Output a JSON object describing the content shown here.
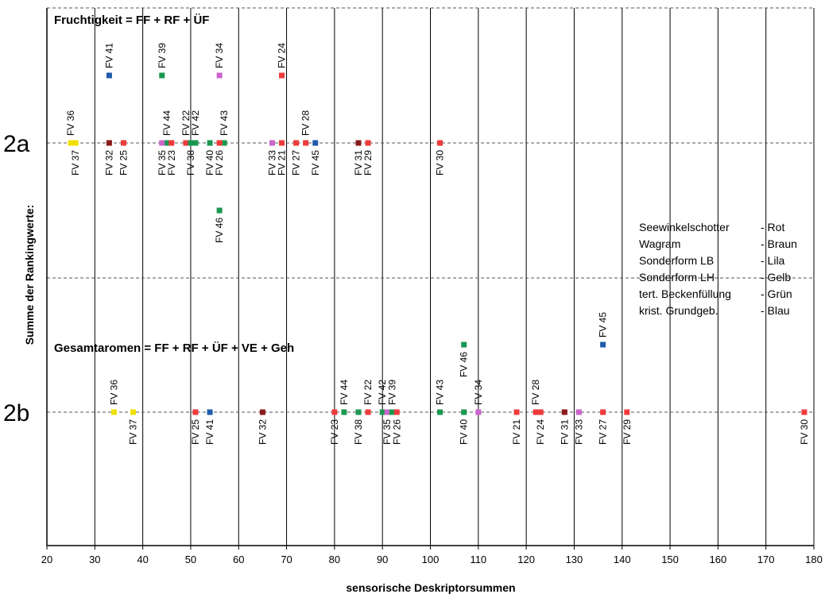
{
  "chart_data": {
    "type": "scatter",
    "xlabel": "sensorische Deskriptorsummen",
    "ylabel": "Summe der Rankingwerte:",
    "xlim": [
      20,
      180
    ],
    "xticks": [
      20,
      30,
      40,
      50,
      60,
      70,
      80,
      90,
      100,
      110,
      120,
      130,
      140,
      150,
      160,
      170,
      180
    ],
    "grid": "vertical",
    "levels": [
      "2a",
      "2b"
    ],
    "panels": [
      {
        "level": "2a",
        "title": "Fruchtigkeit = FF + RF + ÜF",
        "points": [
          {
            "label": "FV 36",
            "x": 25,
            "row": 0,
            "color": "#F0E000",
            "pos": "above"
          },
          {
            "label": "FV 37",
            "x": 26,
            "row": 0,
            "color": "#F0E000",
            "pos": "below"
          },
          {
            "label": "FV 41",
            "x": 33,
            "row": 1,
            "color": "#1F5BAA",
            "pos": "above"
          },
          {
            "label": "FV 32",
            "x": 33,
            "row": 0,
            "color": "#8B1A1A",
            "pos": "below"
          },
          {
            "label": "FV 25",
            "x": 36,
            "row": 0,
            "color": "#EE3B3B",
            "pos": "below"
          },
          {
            "label": "FV 39",
            "x": 44,
            "row": 1,
            "color": "#1A9850",
            "pos": "above"
          },
          {
            "label": "FV 44",
            "x": 45,
            "row": 0,
            "color": "#1A9850",
            "pos": "above"
          },
          {
            "label": "FV 35",
            "x": 44,
            "row": 0,
            "color": "#CC66CC",
            "pos": "below"
          },
          {
            "label": "FV 23",
            "x": 46,
            "row": 0,
            "color": "#EE3B3B",
            "pos": "below"
          },
          {
            "label": "FV 22",
            "x": 49,
            "row": 0,
            "color": "#EE3B3B",
            "pos": "above"
          },
          {
            "label": "FV 42",
            "x": 51,
            "row": 0,
            "color": "#1A9850",
            "pos": "above"
          },
          {
            "label": "FV 38",
            "x": 50,
            "row": 0,
            "color": "#1A9850",
            "pos": "below"
          },
          {
            "label": "FV 34",
            "x": 56,
            "row": 1,
            "color": "#CC66CC",
            "pos": "above"
          },
          {
            "label": "FV 43",
            "x": 57,
            "row": 0,
            "color": "#1A9850",
            "pos": "above"
          },
          {
            "label": "FV 40",
            "x": 54,
            "row": 0,
            "color": "#1A9850",
            "pos": "below"
          },
          {
            "label": "FV 26",
            "x": 56,
            "row": 0,
            "color": "#EE3B3B",
            "pos": "below"
          },
          {
            "label": "FV 46",
            "x": 56,
            "row": -1,
            "color": "#1A9850",
            "pos": "below"
          },
          {
            "label": "FV 24",
            "x": 69,
            "row": 1,
            "color": "#EE3B3B",
            "pos": "above"
          },
          {
            "label": "FV 33",
            "x": 67,
            "row": 0,
            "color": "#CC66CC",
            "pos": "below"
          },
          {
            "label": "FV 21",
            "x": 69,
            "row": 0,
            "color": "#EE3B3B",
            "pos": "below"
          },
          {
            "label": "FV 28",
            "x": 74,
            "row": 0,
            "color": "#EE3B3B",
            "pos": "above"
          },
          {
            "label": "FV 27",
            "x": 72,
            "row": 0,
            "color": "#EE3B3B",
            "pos": "below"
          },
          {
            "label": "FV 45",
            "x": 76,
            "row": 0,
            "color": "#1F5BAA",
            "pos": "below"
          },
          {
            "label": "FV 31",
            "x": 85,
            "row": 0,
            "color": "#8B1A1A",
            "pos": "below"
          },
          {
            "label": "FV 29",
            "x": 87,
            "row": 0,
            "color": "#EE3B3B",
            "pos": "below"
          },
          {
            "label": "FV 30",
            "x": 102,
            "row": 0,
            "color": "#EE3B3B",
            "pos": "below"
          }
        ]
      },
      {
        "level": "2b",
        "title": "Gesamtaromen = FF + RF + ÜF + VE + Geh",
        "points": [
          {
            "label": "FV 36",
            "x": 34,
            "row": 0,
            "color": "#F0E000",
            "pos": "above"
          },
          {
            "label": "FV 37",
            "x": 38,
            "row": 0,
            "color": "#F0E000",
            "pos": "below"
          },
          {
            "label": "FV 25",
            "x": 51,
            "row": 0,
            "color": "#EE3B3B",
            "pos": "below"
          },
          {
            "label": "FV 41",
            "x": 54,
            "row": 0,
            "color": "#1F5BAA",
            "pos": "below"
          },
          {
            "label": "FV 32",
            "x": 65,
            "row": 0,
            "color": "#8B1A1A",
            "pos": "below"
          },
          {
            "label": "FV 23",
            "x": 80,
            "row": 0,
            "color": "#EE3B3B",
            "pos": "below"
          },
          {
            "label": "FV 44",
            "x": 82,
            "row": 0,
            "color": "#1A9850",
            "pos": "above"
          },
          {
            "label": "FV 38",
            "x": 85,
            "row": 0,
            "color": "#1A9850",
            "pos": "below"
          },
          {
            "label": "FV 22",
            "x": 87,
            "row": 0,
            "color": "#EE3B3B",
            "pos": "above"
          },
          {
            "label": "FV 42",
            "x": 90,
            "row": 0,
            "color": "#1A9850",
            "pos": "above"
          },
          {
            "label": "FV 35",
            "x": 91,
            "row": 0,
            "color": "#CC66CC",
            "pos": "below"
          },
          {
            "label": "FV 39",
            "x": 92,
            "row": 0,
            "color": "#1A9850",
            "pos": "above"
          },
          {
            "label": "FV 26",
            "x": 93,
            "row": 0,
            "color": "#EE3B3B",
            "pos": "below"
          },
          {
            "label": "FV 43",
            "x": 102,
            "row": 0,
            "color": "#1A9850",
            "pos": "above"
          },
          {
            "label": "FV 40",
            "x": 107,
            "row": 0,
            "color": "#1A9850",
            "pos": "below"
          },
          {
            "label": "FV 46",
            "x": 107,
            "row": 1,
            "color": "#1A9850",
            "pos": "below"
          },
          {
            "label": "FV 34",
            "x": 110,
            "row": 0,
            "color": "#CC66CC",
            "pos": "above"
          },
          {
            "label": "FV 21",
            "x": 118,
            "row": 0,
            "color": "#EE3B3B",
            "pos": "below"
          },
          {
            "label": "FV 28",
            "x": 122,
            "row": 0,
            "color": "#EE3B3B",
            "pos": "above"
          },
          {
            "label": "FV 24",
            "x": 123,
            "row": 0,
            "color": "#EE3B3B",
            "pos": "below"
          },
          {
            "label": "FV 31",
            "x": 128,
            "row": 0,
            "color": "#8B1A1A",
            "pos": "below"
          },
          {
            "label": "FV 33",
            "x": 131,
            "row": 0,
            "color": "#CC66CC",
            "pos": "below"
          },
          {
            "label": "FV 45",
            "x": 136,
            "row": 1,
            "color": "#1F5BAA",
            "pos": "above"
          },
          {
            "label": "FV 27",
            "x": 136,
            "row": 0,
            "color": "#EE3B3B",
            "pos": "below"
          },
          {
            "label": "FV 29",
            "x": 141,
            "row": 0,
            "color": "#EE3B3B",
            "pos": "below"
          },
          {
            "label": "FV 30",
            "x": 178,
            "row": 0,
            "color": "#EE3B3B",
            "pos": "below"
          }
        ]
      }
    ],
    "legend": {
      "placement": "right",
      "entries": [
        {
          "name": "Seewinkelschotter",
          "color_name": "- Rot"
        },
        {
          "name": "Wagram",
          "color_name": "- Braun"
        },
        {
          "name": "Sonderform LB",
          "color_name": "- Lila"
        },
        {
          "name": "Sonderform LH",
          "color_name": "- Gelb"
        },
        {
          "name": "tert. Beckenfüllung",
          "color_name": "- Grün"
        },
        {
          "name": "krist. Grundgeb.",
          "color_name": "- Blau"
        }
      ]
    }
  }
}
